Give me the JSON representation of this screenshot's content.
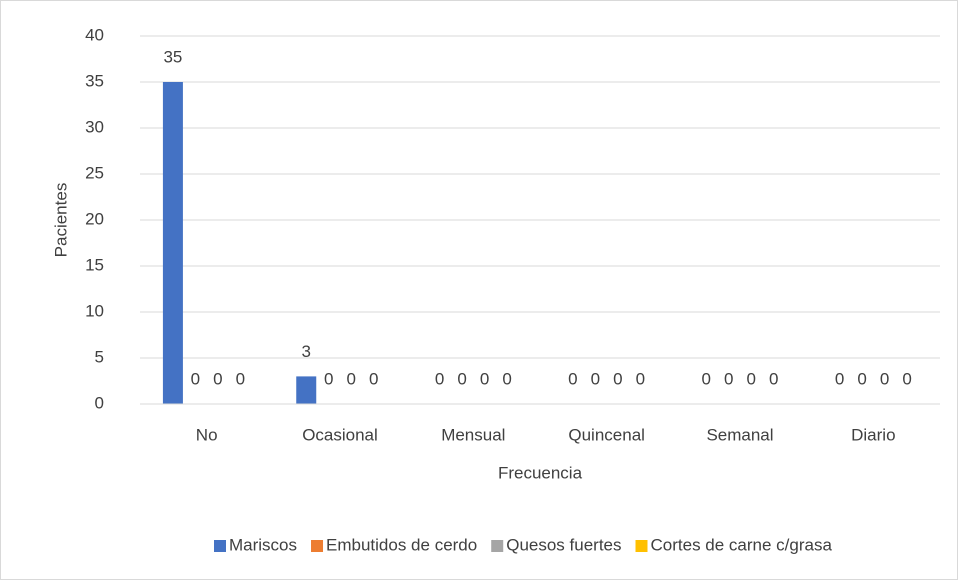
{
  "chart_data": {
    "type": "bar",
    "categories": [
      "No",
      "Ocasional",
      "Mensual",
      "Quincenal",
      "Semanal",
      "Diario"
    ],
    "series": [
      {
        "name": "Mariscos",
        "color": "#4472c4",
        "values": [
          35,
          3,
          0,
          0,
          0,
          0
        ]
      },
      {
        "name": "Embutidos de cerdo",
        "color": "#ed7d31",
        "values": [
          0,
          0,
          0,
          0,
          0,
          0
        ]
      },
      {
        "name": "Quesos fuertes",
        "color": "#a5a5a5",
        "values": [
          0,
          0,
          0,
          0,
          0,
          0
        ]
      },
      {
        "name": "Cortes de carne c/grasa",
        "color": "#ffc000",
        "values": [
          0,
          0,
          0,
          0,
          0,
          0
        ]
      }
    ],
    "xlabel": "Frecuencia",
    "ylabel": "Pacientes",
    "ylim": [
      0,
      40
    ],
    "yticks": [
      0,
      5,
      10,
      15,
      20,
      25,
      30,
      35,
      40
    ],
    "grid": true,
    "legend": "bottom",
    "data_labels": true
  }
}
